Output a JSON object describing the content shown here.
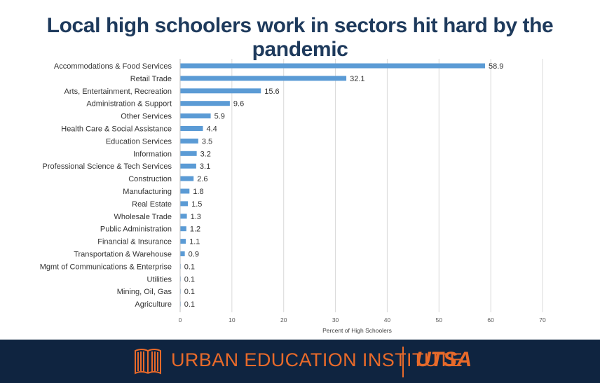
{
  "title": "Local high schoolers work in sectors hit hard by the pandemic",
  "footer": {
    "institute": "URBAN EDUCATION INSTITUTE",
    "university": "UTSA",
    "accent_color": "#e86a2a",
    "background_color": "#0f2440",
    "logo_icon": "book-logo-icon"
  },
  "chart_data": {
    "type": "bar",
    "orientation": "horizontal",
    "categories": [
      "Accommodations & Food Services",
      "Retail Trade",
      "Arts, Entertainment, Recreation",
      "Administration & Support",
      "Other Services",
      "Health Care & Social Assistance",
      "Education Services",
      "Information",
      "Professional Science & Tech Services",
      "Construction",
      "Manufacturing",
      "Real Estate",
      "Wholesale Trade",
      "Public Administration",
      "Financial & Insurance",
      "Transportation & Warehouse",
      "Mgmt of Communications & Enterprise",
      "Utilities",
      "Mining, Oil, Gas",
      "Agriculture"
    ],
    "values": [
      58.9,
      32.1,
      15.6,
      9.6,
      5.9,
      4.4,
      3.5,
      3.2,
      3.1,
      2.6,
      1.8,
      1.5,
      1.3,
      1.2,
      1.1,
      0.9,
      0.1,
      0.1,
      0.1,
      0.1
    ],
    "xlabel": "Percent of High Schoolers",
    "ylabel": "",
    "xlim": [
      0,
      70
    ],
    "xticks": [
      0,
      10,
      20,
      30,
      40,
      50,
      60,
      70
    ],
    "grid": "vertical",
    "legend": "none",
    "bar_color": "#5b9bd5"
  }
}
